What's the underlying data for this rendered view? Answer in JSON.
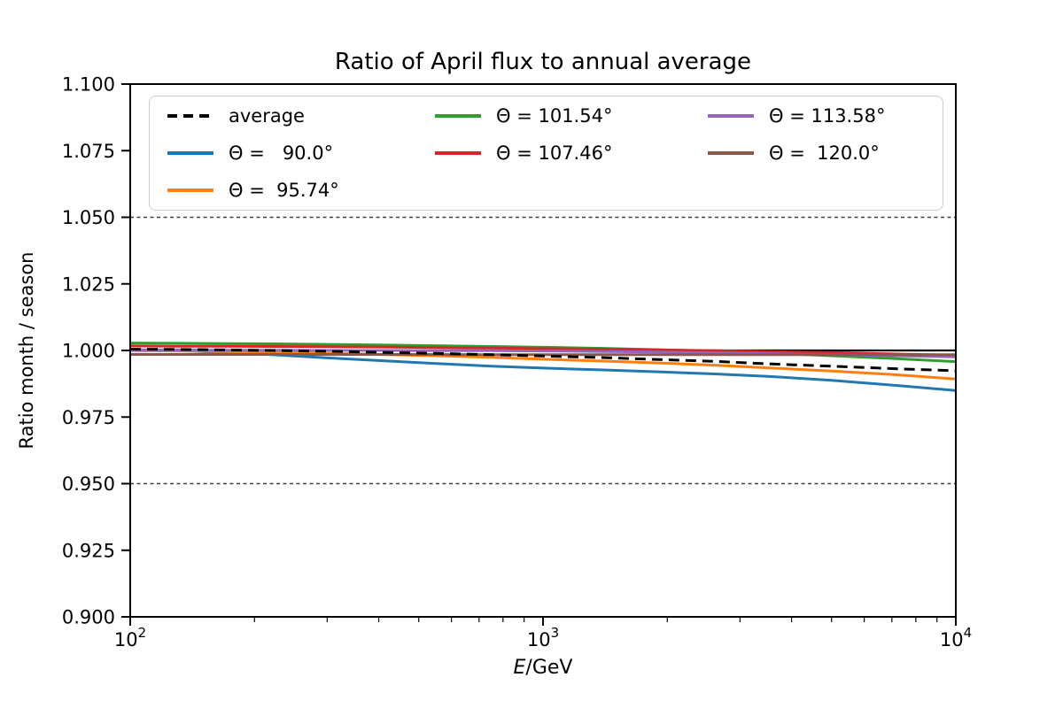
{
  "figure": {
    "background": "#ffffff"
  },
  "chart_data": {
    "type": "line",
    "title": "Ratio of April flux to annual average",
    "xlabel": "E/GeV",
    "xlabel_parts": {
      "italic": "E",
      "rest": "/GeV"
    },
    "ylabel": "Ratio month / season",
    "x_scale": "log",
    "xlim": [
      100,
      10000
    ],
    "ylim": [
      0.9,
      1.1
    ],
    "grid": "off",
    "y_ticks": [
      {
        "value": 0.9,
        "label": "0.900"
      },
      {
        "value": 0.925,
        "label": "0.925"
      },
      {
        "value": 0.95,
        "label": "0.950"
      },
      {
        "value": 0.975,
        "label": "0.975"
      },
      {
        "value": 1.0,
        "label": "1.000"
      },
      {
        "value": 1.025,
        "label": "1.025"
      },
      {
        "value": 1.05,
        "label": "1.050"
      },
      {
        "value": 1.075,
        "label": "1.075"
      },
      {
        "value": 1.1,
        "label": "1.100"
      }
    ],
    "x_major_ticks": [
      {
        "value": 100,
        "base": "10",
        "exp": "2"
      },
      {
        "value": 1000,
        "base": "10",
        "exp": "3"
      },
      {
        "value": 10000,
        "base": "10",
        "exp": "4"
      }
    ],
    "x_minor_ticks": [
      200,
      300,
      400,
      500,
      600,
      700,
      800,
      900,
      2000,
      3000,
      4000,
      5000,
      6000,
      7000,
      8000,
      9000
    ],
    "reference_lines": [
      {
        "y": 1.05,
        "color": "#3d3d3d",
        "style": "dashed"
      },
      {
        "y": 0.95,
        "color": "#3d3d3d",
        "style": "dashed"
      },
      {
        "y": 1.0,
        "color": "#000000",
        "style": "solid"
      }
    ],
    "x": [
      100,
      130,
      170,
      220,
      300,
      400,
      550,
      750,
      1000,
      1400,
      1900,
      2600,
      3500,
      5000,
      7000,
      10000
    ],
    "series": [
      {
        "key": "t90",
        "label": "Θ =   90.0°",
        "color": "#1f77b4",
        "dash": "solid",
        "values": [
          1.0003,
          0.9999,
          0.9992,
          0.9984,
          0.9972,
          0.9962,
          0.9951,
          0.9941,
          0.9934,
          0.9927,
          0.992,
          0.9912,
          0.9903,
          0.9888,
          0.987,
          0.985
        ]
      },
      {
        "key": "t95",
        "label": "Θ =  95.74°",
        "color": "#ff7f0e",
        "dash": "solid",
        "values": [
          0.9999,
          0.9998,
          0.9996,
          0.9993,
          0.9989,
          0.9985,
          0.998,
          0.9974,
          0.9967,
          0.996,
          0.9953,
          0.9945,
          0.9935,
          0.9923,
          0.991,
          0.9893
        ]
      },
      {
        "key": "t101",
        "label": "Θ = 101.54°",
        "color": "#2ca02c",
        "dash": "solid",
        "values": [
          1.0028,
          1.0027,
          1.0026,
          1.0025,
          1.0023,
          1.0021,
          1.0018,
          1.0015,
          1.0012,
          1.0008,
          1.0003,
          0.9997,
          0.999,
          0.998,
          0.997,
          0.9958
        ]
      },
      {
        "key": "t107",
        "label": "Θ = 107.46°",
        "color": "#d62728",
        "dash": "solid",
        "values": [
          1.0017,
          1.0016,
          1.0016,
          1.0015,
          1.0014,
          1.0013,
          1.0011,
          1.0009,
          1.0007,
          1.0005,
          1.0002,
          0.9999,
          0.9996,
          0.9992,
          0.9987,
          0.9982
        ]
      },
      {
        "key": "t113",
        "label": "Θ = 113.58°",
        "color": "#9467bd",
        "dash": "solid",
        "values": [
          1.0002,
          1.0002,
          1.0001,
          1.0001,
          1.0,
          1.0,
          0.9999,
          0.9999,
          0.9998,
          0.9996,
          0.9994,
          0.9991,
          0.9988,
          0.9984,
          0.998,
          0.9976
        ]
      },
      {
        "key": "t120",
        "label": "Θ =  120.0°",
        "color": "#8c564b",
        "dash": "solid",
        "values": [
          0.9985,
          0.9985,
          0.9985,
          0.9985,
          0.9985,
          0.9985,
          0.9985,
          0.9984,
          0.9984,
          0.9984,
          0.9984,
          0.9984,
          0.9984,
          0.9984,
          0.9984,
          0.9984
        ]
      },
      {
        "key": "average",
        "label": "average",
        "color": "#000000",
        "dash": "dashed",
        "values": [
          1.0005,
          1.0004,
          1.0002,
          1.0,
          0.9997,
          0.9993,
          0.9989,
          0.9984,
          0.9979,
          0.9973,
          0.9966,
          0.9959,
          0.995,
          0.9941,
          0.9932,
          0.9924
        ]
      }
    ],
    "legend": {
      "position": "upper left",
      "columns": [
        [
          "average",
          "t90",
          "t95"
        ],
        [
          "t101",
          "t107"
        ],
        [
          "t113",
          "t120"
        ]
      ]
    }
  }
}
